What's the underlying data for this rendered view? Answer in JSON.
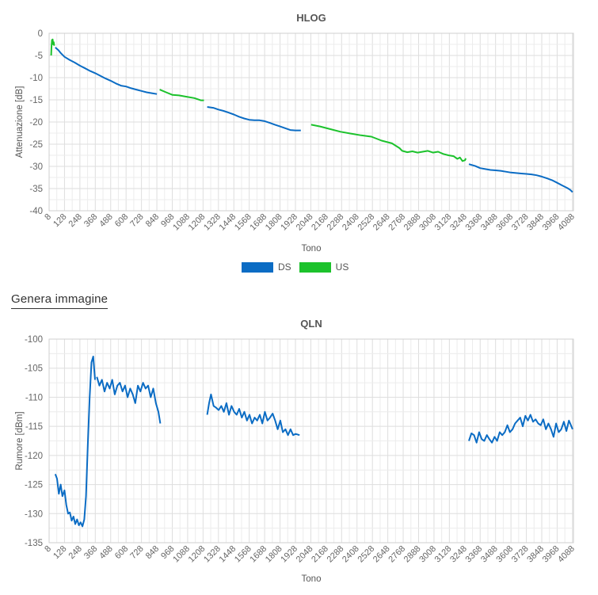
{
  "section_title": "Genera immagine",
  "legend": [
    {
      "name": "DS",
      "color": "#0b6cc4"
    },
    {
      "name": "US",
      "color": "#1cc22c"
    }
  ],
  "chart_data": [
    {
      "type": "line",
      "title": "HLOG",
      "xlabel": "Tono",
      "ylabel": "Attenuazione [dB]",
      "xlim": [
        8,
        4095
      ],
      "ylim": [
        -40,
        0
      ],
      "yticks": [
        0,
        -5,
        -10,
        -15,
        -20,
        -25,
        -30,
        -35,
        -40
      ],
      "xticks": [
        8,
        128,
        248,
        368,
        488,
        608,
        728,
        848,
        968,
        1088,
        1208,
        1328,
        1448,
        1568,
        1688,
        1808,
        1928,
        2048,
        2168,
        2288,
        2408,
        2528,
        2648,
        2768,
        2888,
        3008,
        3128,
        3248,
        3368,
        3488,
        3608,
        3728,
        3848,
        3968,
        4088
      ],
      "grid": true,
      "legend_position": "bottom",
      "series": [
        {
          "name": "US",
          "color": "#1cc22c",
          "segments": [
            {
              "x": [
                24,
                26,
                28,
                30,
                32,
                36,
                40,
                44,
                48
              ],
              "y": [
                -5,
                -3.5,
                -2.5,
                -1.5,
                -1.6,
                -1.4,
                -2.5,
                -2.0,
                -2.8
              ]
            },
            {
              "x": [
                870,
                920,
                970,
                1020,
                1080,
                1140,
                1190,
                1215
              ],
              "y": [
                -12.7,
                -13.3,
                -13.9,
                -14.0,
                -14.3,
                -14.6,
                -15.1,
                -15.1
              ]
            },
            {
              "x": [
                2050,
                2120,
                2200,
                2280,
                2360,
                2440,
                2520,
                2600,
                2680,
                2740,
                2760,
                2800,
                2840,
                2880,
                2920,
                2960,
                3000,
                3040,
                3080,
                3120,
                3160,
                3190,
                3210,
                3230,
                3250,
                3256
              ],
              "y": [
                -20.6,
                -21.0,
                -21.6,
                -22.2,
                -22.6,
                -23.0,
                -23.3,
                -24.2,
                -24.8,
                -25.9,
                -26.5,
                -26.8,
                -26.6,
                -26.9,
                -26.7,
                -26.5,
                -26.9,
                -26.7,
                -27.2,
                -27.5,
                -27.7,
                -28.3,
                -28.0,
                -28.8,
                -28.6,
                -28.2
              ]
            }
          ]
        },
        {
          "name": "DS",
          "color": "#0b6cc4",
          "segments": [
            {
              "x": [
                56,
                80,
                100,
                128,
                168,
                208,
                248,
                288,
                328,
                368,
                408,
                448,
                488,
                528,
                568,
                608,
                648,
                688,
                728,
                768,
                808,
                848
              ],
              "y": [
                -3.2,
                -3.8,
                -4.5,
                -5.3,
                -6.0,
                -6.6,
                -7.3,
                -7.9,
                -8.5,
                -9.0,
                -9.6,
                -10.2,
                -10.7,
                -11.3,
                -11.8,
                -12.0,
                -12.4,
                -12.7,
                -13.0,
                -13.3,
                -13.5,
                -13.7
              ]
            },
            {
              "x": [
                1240,
                1288,
                1328,
                1368,
                1408,
                1448,
                1488,
                1528,
                1568,
                1608,
                1648,
                1688,
                1728,
                1768,
                1808,
                1848,
                1888,
                1928,
                1970
              ],
              "y": [
                -16.6,
                -16.8,
                -17.2,
                -17.5,
                -17.9,
                -18.3,
                -18.8,
                -19.2,
                -19.5,
                -19.6,
                -19.6,
                -19.8,
                -20.2,
                -20.6,
                -21.0,
                -21.4,
                -21.8,
                -21.9,
                -21.9
              ]
            },
            {
              "x": [
                3280,
                3328,
                3368,
                3408,
                3448,
                3488,
                3528,
                3568,
                3608,
                3648,
                3688,
                3728,
                3768,
                3808,
                3848,
                3888,
                3928,
                3968,
                4008,
                4048,
                4070,
                4088
              ],
              "y": [
                -29.5,
                -29.9,
                -30.4,
                -30.6,
                -30.8,
                -30.9,
                -31.0,
                -31.2,
                -31.4,
                -31.5,
                -31.6,
                -31.7,
                -31.8,
                -32.0,
                -32.3,
                -32.7,
                -33.1,
                -33.7,
                -34.3,
                -34.9,
                -35.3,
                -35.8
              ]
            }
          ]
        }
      ]
    },
    {
      "type": "line",
      "title": "QLN",
      "xlabel": "Tono",
      "ylabel": "Rumore [dBm]",
      "xlim": [
        8,
        4095
      ],
      "ylim": [
        -135,
        -100
      ],
      "yticks": [
        -100,
        -105,
        -110,
        -115,
        -120,
        -125,
        -130,
        -135
      ],
      "xticks": [
        8,
        128,
        248,
        368,
        488,
        608,
        728,
        848,
        968,
        1088,
        1208,
        1328,
        1448,
        1568,
        1688,
        1808,
        1928,
        2048,
        2168,
        2288,
        2408,
        2528,
        2648,
        2768,
        2888,
        3008,
        3128,
        3248,
        3368,
        3488,
        3608,
        3728,
        3848,
        3968,
        4088
      ],
      "grid": true,
      "series": [
        {
          "name": "",
          "color": "#0b6cc4",
          "segments": [
            {
              "x": [
                56,
                70,
                84,
                98,
                112,
                128,
                142,
                156,
                170,
                184,
                198,
                212,
                226,
                240,
                254,
                268,
                282,
                296,
                310,
                324,
                338,
                352,
                366
              ],
              "y": [
                -123.2,
                -124.0,
                -126.6,
                -125.0,
                -127.0,
                -126.0,
                -128.5,
                -130.0,
                -129.8,
                -131.2,
                -130.5,
                -131.8,
                -131.0,
                -132.0,
                -131.5,
                -132.2,
                -131.0,
                -127.0,
                -118.0,
                -110.0,
                -104.0,
                -103.0,
                -107.0
              ]
            },
            {
              "x": [
                380,
                400,
                420,
                440,
                460,
                480,
                500,
                520,
                540,
                560,
                580,
                600,
                620,
                640,
                660,
                680,
                700,
                720,
                740,
                760,
                780,
                800,
                820,
                840,
                860,
                875
              ],
              "y": [
                -106.5,
                -108.0,
                -107.0,
                -109.0,
                -107.5,
                -108.5,
                -107.0,
                -109.5,
                -108.0,
                -107.5,
                -109.0,
                -108.0,
                -110.0,
                -108.5,
                -109.5,
                -111.0,
                -108.0,
                -109.0,
                -107.5,
                -108.5,
                -108.0,
                -110.0,
                -108.5,
                -111.0,
                -112.5,
                -114.5
              ]
            },
            {
              "x": [
                1240,
                1255,
                1270,
                1290,
                1310,
                1330,
                1350,
                1370,
                1390,
                1410,
                1430,
                1450,
                1470,
                1490,
                1510,
                1530,
                1550,
                1570,
                1590,
                1610,
                1630,
                1650,
                1670,
                1690,
                1710,
                1730,
                1750,
                1770,
                1790,
                1810,
                1830,
                1850,
                1870,
                1890,
                1910,
                1930,
                1960
              ],
              "y": [
                -113.0,
                -111.0,
                -109.5,
                -111.5,
                -111.8,
                -112.2,
                -111.5,
                -112.5,
                -111.0,
                -113.0,
                -111.5,
                -112.5,
                -113.0,
                -112.0,
                -113.5,
                -112.5,
                -114.0,
                -113.0,
                -114.5,
                -113.5,
                -114.0,
                -113.0,
                -114.5,
                -112.5,
                -114.0,
                -113.5,
                -112.8,
                -114.0,
                -115.5,
                -114.0,
                -116.0,
                -115.5,
                -116.5,
                -115.5,
                -116.5,
                -116.3,
                -116.5
              ]
            },
            {
              "x": [
                3280,
                3300,
                3320,
                3340,
                3360,
                3380,
                3400,
                3420,
                3440,
                3460,
                3480,
                3500,
                3520,
                3540,
                3560,
                3580,
                3600,
                3620,
                3640,
                3660,
                3680,
                3700,
                3720,
                3740,
                3760,
                3780,
                3800,
                3820,
                3840,
                3860,
                3880,
                3900,
                3920,
                3940,
                3960,
                3980,
                4000,
                4020,
                4040,
                4060,
                4088
              ],
              "y": [
                -117.5,
                -116.2,
                -116.5,
                -117.8,
                -116.0,
                -117.2,
                -117.5,
                -116.5,
                -117.2,
                -117.8,
                -116.8,
                -117.5,
                -116.0,
                -116.5,
                -116.0,
                -114.8,
                -116.0,
                -115.5,
                -114.5,
                -114.0,
                -113.5,
                -115.0,
                -113.2,
                -114.0,
                -113.0,
                -114.2,
                -113.8,
                -114.5,
                -114.8,
                -113.8,
                -115.5,
                -114.5,
                -115.5,
                -116.8,
                -114.5,
                -116.0,
                -115.5,
                -114.2,
                -115.8,
                -114.0,
                -115.5
              ]
            }
          ]
        }
      ]
    }
  ]
}
